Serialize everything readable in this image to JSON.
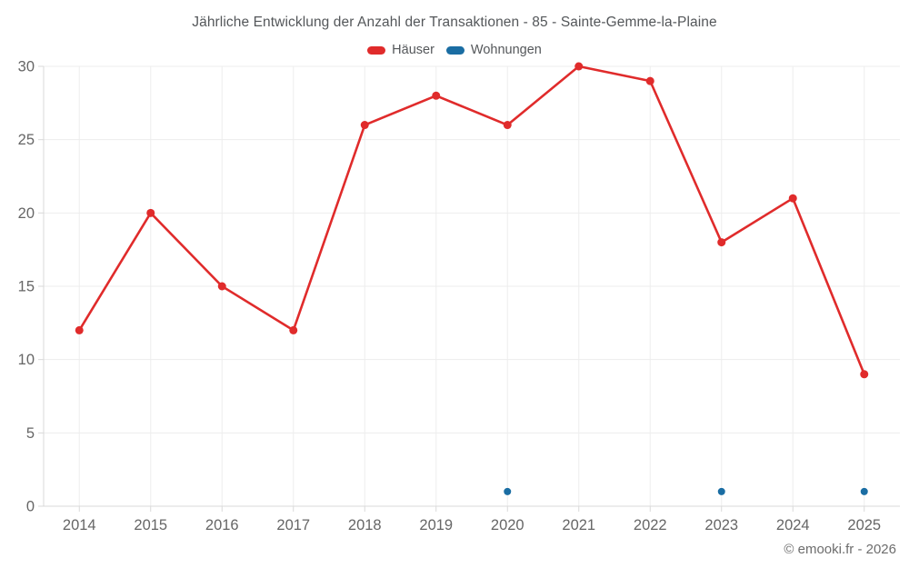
{
  "chart": {
    "footer": "© emooki.fr - 2026"
  },
  "chart_data": {
    "type": "line",
    "title": "Jährliche Entwicklung der Anzahl der Transaktionen - 85 - Sainte-Gemme-la-Plaine",
    "categories": [
      "2014",
      "2015",
      "2016",
      "2017",
      "2018",
      "2019",
      "2020",
      "2021",
      "2022",
      "2023",
      "2024",
      "2025"
    ],
    "series": [
      {
        "name": "Häuser",
        "color": "#e02b2b",
        "marker_radius": 4.5,
        "values": [
          12,
          20,
          15,
          12,
          26,
          28,
          26,
          30,
          29,
          18,
          21,
          9
        ]
      },
      {
        "name": "Wohnungen",
        "color": "#1a6da3",
        "marker_radius": 4,
        "values": [
          null,
          null,
          null,
          null,
          null,
          null,
          1,
          null,
          null,
          1,
          null,
          1
        ]
      }
    ],
    "xlabel": "",
    "ylabel": "",
    "ylim": [
      0,
      30
    ],
    "yticks": [
      0,
      5,
      10,
      15,
      20,
      25,
      30
    ],
    "grid": true,
    "legend_position": "top"
  },
  "style": {
    "grid_color": "#ededed",
    "axis_color": "#d9d9d9",
    "tick_label_color": "#666666",
    "title_color": "#54575a",
    "footer_color": "#6d6d6d"
  }
}
